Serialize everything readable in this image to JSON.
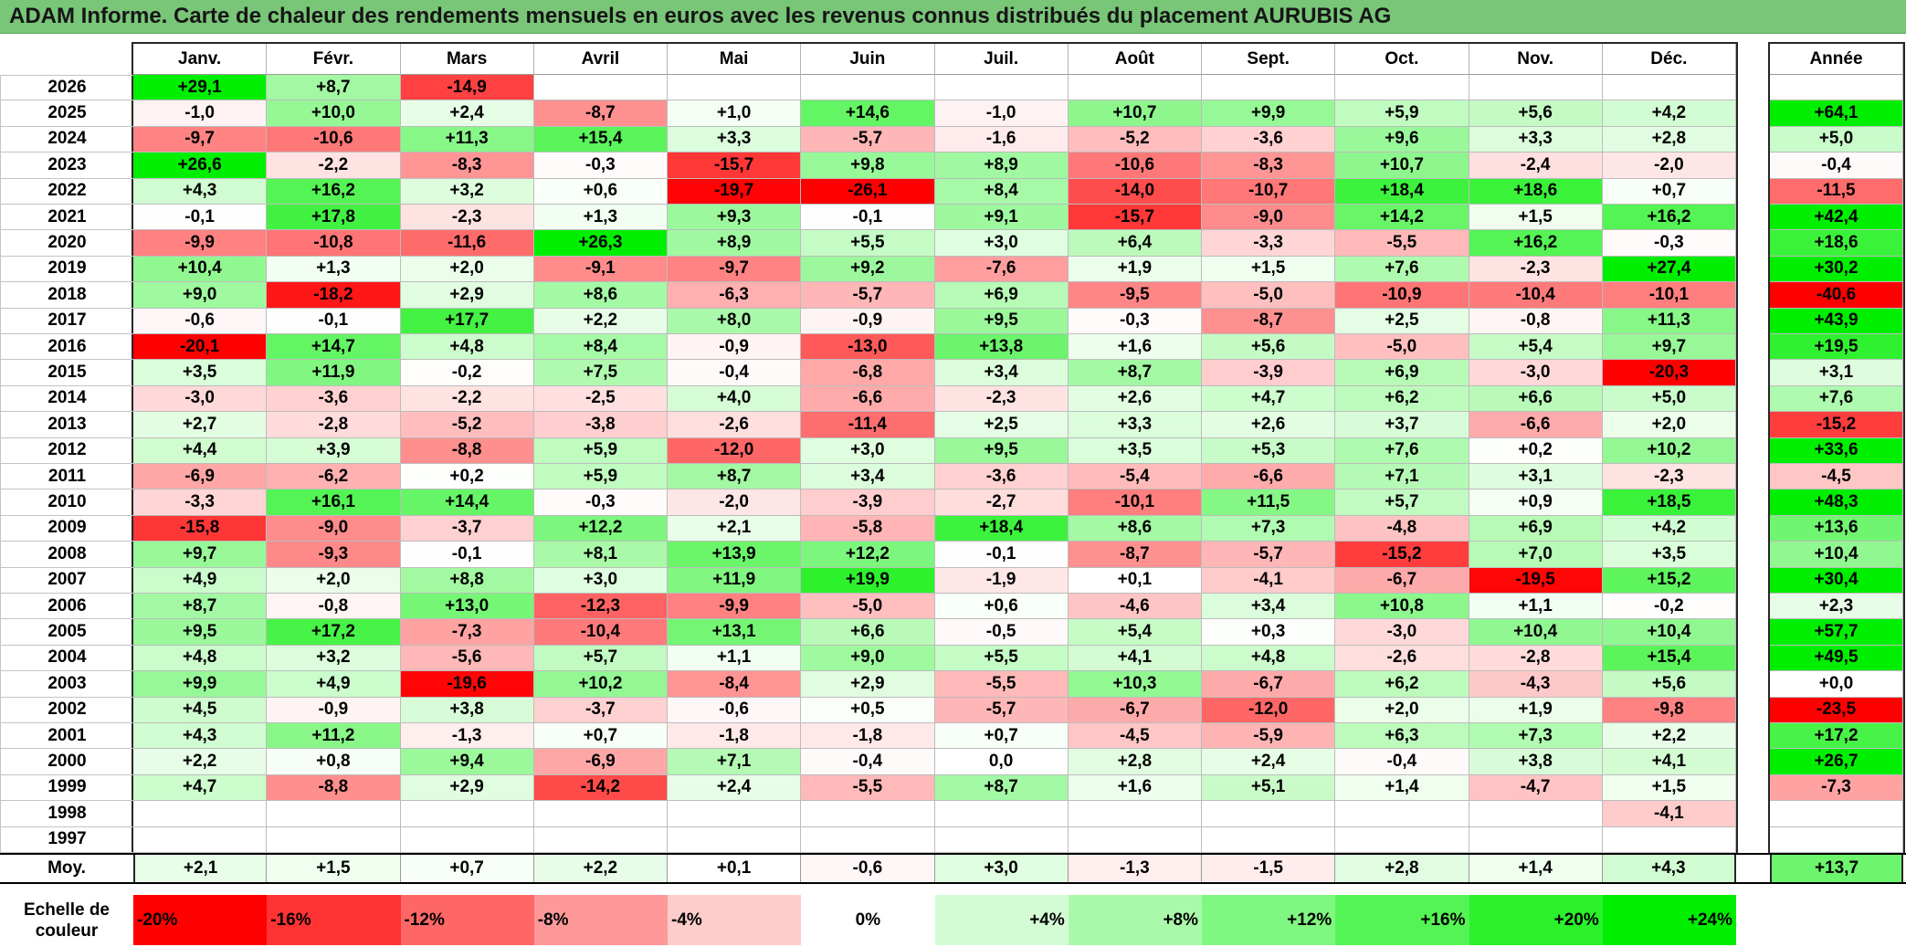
{
  "chart_data": {
    "type": "heatmap",
    "title": "ADAM Informe. Carte de chaleur des rendements mensuels en euros avec les revenus connus distribués du placement AURUBIS AG",
    "columns": [
      "Janv.",
      "Févr.",
      "Mars",
      "Avril",
      "Mai",
      "Juin",
      "Juil.",
      "Août",
      "Sept.",
      "Oct.",
      "Nov.",
      "Déc."
    ],
    "annual_header": "Année",
    "rows": [
      {
        "year": "2026",
        "values": [
          29.1,
          8.7,
          -14.9,
          null,
          null,
          null,
          null,
          null,
          null,
          null,
          null,
          null
        ],
        "labels": [
          "+29,1",
          "+8,7",
          "-14,9",
          null,
          null,
          null,
          null,
          null,
          null,
          null,
          null,
          null
        ],
        "annual": null,
        "annual_text": null
      },
      {
        "year": "2025",
        "values": [
          -1.0,
          10.0,
          2.4,
          -8.7,
          1.0,
          14.6,
          -1.0,
          10.7,
          9.9,
          5.9,
          5.6,
          4.2
        ],
        "labels": [
          "-1,0",
          "+10,0",
          "+2,4",
          "-8,7",
          "+1,0",
          "+14,6",
          "-1,0",
          "+10,7",
          "+9,9",
          "+5,9",
          "+5,6",
          "+4,2"
        ],
        "annual": 64.1,
        "annual_text": "+64,1"
      },
      {
        "year": "2024",
        "values": [
          -9.7,
          -10.6,
          11.3,
          15.4,
          3.3,
          -5.7,
          -1.6,
          -5.2,
          -3.6,
          9.6,
          3.3,
          2.8
        ],
        "labels": [
          "-9,7",
          "-10,6",
          "+11,3",
          "+15,4",
          "+3,3",
          "-5,7",
          "-1,6",
          "-5,2",
          "-3,6",
          "+9,6",
          "+3,3",
          "+2,8"
        ],
        "annual": 5.0,
        "annual_text": "+5,0"
      },
      {
        "year": "2023",
        "values": [
          26.6,
          -2.2,
          -8.3,
          -0.3,
          -15.7,
          9.8,
          8.9,
          -10.6,
          -8.3,
          10.7,
          -2.4,
          -2.0
        ],
        "labels": [
          "+26,6",
          "-2,2",
          "-8,3",
          "-0,3",
          "-15,7",
          "+9,8",
          "+8,9",
          "-10,6",
          "-8,3",
          "+10,7",
          "-2,4",
          "-2,0"
        ],
        "annual": -0.4,
        "annual_text": "-0,4"
      },
      {
        "year": "2022",
        "values": [
          4.3,
          16.2,
          3.2,
          0.6,
          -19.7,
          -26.1,
          8.4,
          -14.0,
          -10.7,
          18.4,
          18.6,
          0.7
        ],
        "labels": [
          "+4,3",
          "+16,2",
          "+3,2",
          "+0,6",
          "-19,7",
          "-26,1",
          "+8,4",
          "-14,0",
          "-10,7",
          "+18,4",
          "+18,6",
          "+0,7"
        ],
        "annual": -11.5,
        "annual_text": "-11,5"
      },
      {
        "year": "2021",
        "values": [
          -0.1,
          17.8,
          -2.3,
          1.3,
          9.3,
          -0.1,
          9.1,
          -15.7,
          -9.0,
          14.2,
          1.5,
          16.2
        ],
        "labels": [
          "-0,1",
          "+17,8",
          "-2,3",
          "+1,3",
          "+9,3",
          "-0,1",
          "+9,1",
          "-15,7",
          "-9,0",
          "+14,2",
          "+1,5",
          "+16,2"
        ],
        "annual": 42.4,
        "annual_text": "+42,4"
      },
      {
        "year": "2020",
        "values": [
          -9.9,
          -10.8,
          -11.6,
          26.3,
          8.9,
          5.5,
          3.0,
          6.4,
          -3.3,
          -5.5,
          16.2,
          -0.3
        ],
        "labels": [
          "-9,9",
          "-10,8",
          "-11,6",
          "+26,3",
          "+8,9",
          "+5,5",
          "+3,0",
          "+6,4",
          "-3,3",
          "-5,5",
          "+16,2",
          "-0,3"
        ],
        "annual": 18.6,
        "annual_text": "+18,6"
      },
      {
        "year": "2019",
        "values": [
          10.4,
          1.3,
          2.0,
          -9.1,
          -9.7,
          9.2,
          -7.6,
          1.9,
          1.5,
          7.6,
          -2.3,
          27.4
        ],
        "labels": [
          "+10,4",
          "+1,3",
          "+2,0",
          "-9,1",
          "-9,7",
          "+9,2",
          "-7,6",
          "+1,9",
          "+1,5",
          "+7,6",
          "-2,3",
          "+27,4"
        ],
        "annual": 30.2,
        "annual_text": "+30,2"
      },
      {
        "year": "2018",
        "values": [
          9.0,
          -18.2,
          2.9,
          8.6,
          -6.3,
          -5.7,
          6.9,
          -9.5,
          -5.0,
          -10.9,
          -10.4,
          -10.1
        ],
        "labels": [
          "+9,0",
          "-18,2",
          "+2,9",
          "+8,6",
          "-6,3",
          "-5,7",
          "+6,9",
          "-9,5",
          "-5,0",
          "-10,9",
          "-10,4",
          "-10,1"
        ],
        "annual": -40.6,
        "annual_text": "-40,6"
      },
      {
        "year": "2017",
        "values": [
          -0.6,
          -0.1,
          17.7,
          2.2,
          8.0,
          -0.9,
          9.5,
          -0.3,
          -8.7,
          2.5,
          -0.8,
          11.3
        ],
        "labels": [
          "-0,6",
          "-0,1",
          "+17,7",
          "+2,2",
          "+8,0",
          "-0,9",
          "+9,5",
          "-0,3",
          "-8,7",
          "+2,5",
          "-0,8",
          "+11,3"
        ],
        "annual": 43.9,
        "annual_text": "+43,9"
      },
      {
        "year": "2016",
        "values": [
          -20.1,
          14.7,
          4.8,
          8.4,
          -0.9,
          -13.0,
          13.8,
          1.6,
          5.6,
          -5.0,
          5.4,
          9.7
        ],
        "labels": [
          "-20,1",
          "+14,7",
          "+4,8",
          "+8,4",
          "-0,9",
          "-13,0",
          "+13,8",
          "+1,6",
          "+5,6",
          "-5,0",
          "+5,4",
          "+9,7"
        ],
        "annual": 19.5,
        "annual_text": "+19,5"
      },
      {
        "year": "2015",
        "values": [
          3.5,
          11.9,
          -0.2,
          7.5,
          -0.4,
          -6.8,
          3.4,
          8.7,
          -3.9,
          6.9,
          -3.0,
          -20.3
        ],
        "labels": [
          "+3,5",
          "+11,9",
          "-0,2",
          "+7,5",
          "-0,4",
          "-6,8",
          "+3,4",
          "+8,7",
          "-3,9",
          "+6,9",
          "-3,0",
          "-20,3"
        ],
        "annual": 3.1,
        "annual_text": "+3,1"
      },
      {
        "year": "2014",
        "values": [
          -3.0,
          -3.6,
          -2.2,
          -2.5,
          4.0,
          -6.6,
          -2.3,
          2.6,
          4.7,
          6.2,
          6.6,
          5.0
        ],
        "labels": [
          "-3,0",
          "-3,6",
          "-2,2",
          "-2,5",
          "+4,0",
          "-6,6",
          "-2,3",
          "+2,6",
          "+4,7",
          "+6,2",
          "+6,6",
          "+5,0"
        ],
        "annual": 7.6,
        "annual_text": "+7,6"
      },
      {
        "year": "2013",
        "values": [
          2.7,
          -2.8,
          -5.2,
          -3.8,
          -2.6,
          -11.4,
          2.5,
          3.3,
          2.6,
          3.7,
          -6.6,
          2.0
        ],
        "labels": [
          "+2,7",
          "-2,8",
          "-5,2",
          "-3,8",
          "-2,6",
          "-11,4",
          "+2,5",
          "+3,3",
          "+2,6",
          "+3,7",
          "-6,6",
          "+2,0"
        ],
        "annual": -15.2,
        "annual_text": "-15,2"
      },
      {
        "year": "2012",
        "values": [
          4.4,
          3.9,
          -8.8,
          5.9,
          -12.0,
          3.0,
          9.5,
          3.5,
          5.3,
          7.6,
          0.2,
          10.2
        ],
        "labels": [
          "+4,4",
          "+3,9",
          "-8,8",
          "+5,9",
          "-12,0",
          "+3,0",
          "+9,5",
          "+3,5",
          "+5,3",
          "+7,6",
          "+0,2",
          "+10,2"
        ],
        "annual": 33.6,
        "annual_text": "+33,6"
      },
      {
        "year": "2011",
        "values": [
          -6.9,
          -6.2,
          0.2,
          5.9,
          8.7,
          3.4,
          -3.6,
          -5.4,
          -6.6,
          7.1,
          3.1,
          -2.3
        ],
        "labels": [
          "-6,9",
          "-6,2",
          "+0,2",
          "+5,9",
          "+8,7",
          "+3,4",
          "-3,6",
          "-5,4",
          "-6,6",
          "+7,1",
          "+3,1",
          "-2,3"
        ],
        "annual": -4.5,
        "annual_text": "-4,5"
      },
      {
        "year": "2010",
        "values": [
          -3.3,
          16.1,
          14.4,
          -0.3,
          -2.0,
          -3.9,
          -2.7,
          -10.1,
          11.5,
          5.7,
          0.9,
          18.5
        ],
        "labels": [
          "-3,3",
          "+16,1",
          "+14,4",
          "-0,3",
          "-2,0",
          "-3,9",
          "-2,7",
          "-10,1",
          "+11,5",
          "+5,7",
          "+0,9",
          "+18,5"
        ],
        "annual": 48.3,
        "annual_text": "+48,3"
      },
      {
        "year": "2009",
        "values": [
          -15.8,
          -9.0,
          -3.7,
          12.2,
          2.1,
          -5.8,
          18.4,
          8.6,
          7.3,
          -4.8,
          6.9,
          4.2
        ],
        "labels": [
          "-15,8",
          "-9,0",
          "-3,7",
          "+12,2",
          "+2,1",
          "-5,8",
          "+18,4",
          "+8,6",
          "+7,3",
          "-4,8",
          "+6,9",
          "+4,2"
        ],
        "annual": 13.6,
        "annual_text": "+13,6"
      },
      {
        "year": "2008",
        "values": [
          9.7,
          -9.3,
          -0.1,
          8.1,
          13.9,
          12.2,
          -0.1,
          -8.7,
          -5.7,
          -15.2,
          7.0,
          3.5
        ],
        "labels": [
          "+9,7",
          "-9,3",
          "-0,1",
          "+8,1",
          "+13,9",
          "+12,2",
          "-0,1",
          "-8,7",
          "-5,7",
          "-15,2",
          "+7,0",
          "+3,5"
        ],
        "annual": 10.4,
        "annual_text": "+10,4"
      },
      {
        "year": "2007",
        "values": [
          4.9,
          2.0,
          8.8,
          3.0,
          11.9,
          19.9,
          -1.9,
          0.1,
          -4.1,
          -6.7,
          -19.5,
          15.2
        ],
        "labels": [
          "+4,9",
          "+2,0",
          "+8,8",
          "+3,0",
          "+11,9",
          "+19,9",
          "-1,9",
          "+0,1",
          "-4,1",
          "-6,7",
          "-19,5",
          "+15,2"
        ],
        "annual": 30.4,
        "annual_text": "+30,4"
      },
      {
        "year": "2006",
        "values": [
          8.7,
          -0.8,
          13.0,
          -12.3,
          -9.9,
          -5.0,
          0.6,
          -4.6,
          3.4,
          10.8,
          1.1,
          -0.2
        ],
        "labels": [
          "+8,7",
          "-0,8",
          "+13,0",
          "-12,3",
          "-9,9",
          "-5,0",
          "+0,6",
          "-4,6",
          "+3,4",
          "+10,8",
          "+1,1",
          "-0,2"
        ],
        "annual": 2.3,
        "annual_text": "+2,3"
      },
      {
        "year": "2005",
        "values": [
          9.5,
          17.2,
          -7.3,
          -10.4,
          13.1,
          6.6,
          -0.5,
          5.4,
          0.3,
          -3.0,
          10.4,
          10.4
        ],
        "labels": [
          "+9,5",
          "+17,2",
          "-7,3",
          "-10,4",
          "+13,1",
          "+6,6",
          "-0,5",
          "+5,4",
          "+0,3",
          "-3,0",
          "+10,4",
          "+10,4"
        ],
        "annual": 57.7,
        "annual_text": "+57,7"
      },
      {
        "year": "2004",
        "values": [
          4.8,
          3.2,
          -5.6,
          5.7,
          1.1,
          9.0,
          5.5,
          4.1,
          4.8,
          -2.6,
          -2.8,
          15.4
        ],
        "labels": [
          "+4,8",
          "+3,2",
          "-5,6",
          "+5,7",
          "+1,1",
          "+9,0",
          "+5,5",
          "+4,1",
          "+4,8",
          "-2,6",
          "-2,8",
          "+15,4"
        ],
        "annual": 49.5,
        "annual_text": "+49,5"
      },
      {
        "year": "2003",
        "values": [
          9.9,
          4.9,
          -19.6,
          10.2,
          -8.4,
          2.9,
          -5.5,
          10.3,
          -6.7,
          6.2,
          -4.3,
          5.6
        ],
        "labels": [
          "+9,9",
          "+4,9",
          "-19,6",
          "+10,2",
          "-8,4",
          "+2,9",
          "-5,5",
          "+10,3",
          "-6,7",
          "+6,2",
          "-4,3",
          "+5,6"
        ],
        "annual": 0.0,
        "annual_text": "+0,0"
      },
      {
        "year": "2002",
        "values": [
          4.5,
          -0.9,
          3.8,
          -3.7,
          -0.6,
          0.5,
          -5.7,
          -6.7,
          -12.0,
          2.0,
          1.9,
          -9.8
        ],
        "labels": [
          "+4,5",
          "-0,9",
          "+3,8",
          "-3,7",
          "-0,6",
          "+0,5",
          "-5,7",
          "-6,7",
          "-12,0",
          "+2,0",
          "+1,9",
          "-9,8"
        ],
        "annual": -23.5,
        "annual_text": "-23,5"
      },
      {
        "year": "2001",
        "values": [
          4.3,
          11.2,
          -1.3,
          0.7,
          -1.8,
          -1.8,
          0.7,
          -4.5,
          -5.9,
          6.3,
          7.3,
          2.2
        ],
        "labels": [
          "+4,3",
          "+11,2",
          "-1,3",
          "+0,7",
          "-1,8",
          "-1,8",
          "+0,7",
          "-4,5",
          "-5,9",
          "+6,3",
          "+7,3",
          "+2,2"
        ],
        "annual": 17.2,
        "annual_text": "+17,2"
      },
      {
        "year": "2000",
        "values": [
          2.2,
          0.8,
          9.4,
          -6.9,
          7.1,
          -0.4,
          0.0,
          2.8,
          2.4,
          -0.4,
          3.8,
          4.1
        ],
        "labels": [
          "+2,2",
          "+0,8",
          "+9,4",
          "-6,9",
          "+7,1",
          "-0,4",
          "0,0",
          "+2,8",
          "+2,4",
          "-0,4",
          "+3,8",
          "+4,1"
        ],
        "annual": 26.7,
        "annual_text": "+26,7"
      },
      {
        "year": "1999",
        "values": [
          4.7,
          -8.8,
          2.9,
          -14.2,
          2.4,
          -5.5,
          8.7,
          1.6,
          5.1,
          1.4,
          -4.7,
          1.5
        ],
        "labels": [
          "+4,7",
          "-8,8",
          "+2,9",
          "-14,2",
          "+2,4",
          "-5,5",
          "+8,7",
          "+1,6",
          "+5,1",
          "+1,4",
          "-4,7",
          "+1,5"
        ],
        "annual": -7.3,
        "annual_text": "-7,3"
      },
      {
        "year": "1998",
        "values": [
          null,
          null,
          null,
          null,
          null,
          null,
          null,
          null,
          null,
          null,
          null,
          -4.1
        ],
        "labels": [
          null,
          null,
          null,
          null,
          null,
          null,
          null,
          null,
          null,
          null,
          null,
          "-4,1"
        ],
        "annual": null,
        "annual_text": null
      },
      {
        "year": "1997",
        "values": [
          null,
          null,
          null,
          null,
          null,
          null,
          null,
          null,
          null,
          null,
          null,
          null
        ],
        "labels": [
          null,
          null,
          null,
          null,
          null,
          null,
          null,
          null,
          null,
          null,
          null,
          null
        ],
        "annual": null,
        "annual_text": null
      }
    ],
    "average": {
      "label": "Moy.",
      "values": [
        2.1,
        1.5,
        0.7,
        2.2,
        0.1,
        -0.6,
        3.0,
        -1.3,
        -1.5,
        2.8,
        1.4,
        4.3
      ],
      "labels": [
        "+2,1",
        "+1,5",
        "+0,7",
        "+2,2",
        "+0,1",
        "-0,6",
        "+3,0",
        "-1,3",
        "-1,5",
        "+2,8",
        "+1,4",
        "+4,3"
      ],
      "annual": 13.7,
      "annual_text": "+13,7"
    },
    "color_scale": {
      "min": -20,
      "max": 24,
      "min_color": "#ff0000",
      "mid_color": "#ffffff",
      "max_color": "#00ee00"
    },
    "legend": {
      "title": "Echelle de couleur",
      "items": [
        {
          "label": "-20%",
          "value": -20,
          "color": "#ff0000"
        },
        {
          "label": "-16%",
          "value": -16,
          "color": "#ff3333"
        },
        {
          "label": "-12%",
          "value": -12,
          "color": "#ff6666"
        },
        {
          "label": "-8%",
          "value": -8,
          "color": "#ff9999"
        },
        {
          "label": "-4%",
          "value": -4,
          "color": "#ffcccc"
        },
        {
          "label": "0%",
          "value": 0,
          "color": "#ffffff"
        },
        {
          "label": "+4%",
          "value": 4,
          "color": "#d4fcd4"
        },
        {
          "label": "+8%",
          "value": 8,
          "color": "#aaf9aa"
        },
        {
          "label": "+12%",
          "value": 12,
          "color": "#80f780"
        },
        {
          "label": "+16%",
          "value": 16,
          "color": "#55f455"
        },
        {
          "label": "+20%",
          "value": 20,
          "color": "#2bf12b"
        },
        {
          "label": "+24%",
          "value": 24,
          "color": "#00ee00"
        }
      ]
    }
  }
}
